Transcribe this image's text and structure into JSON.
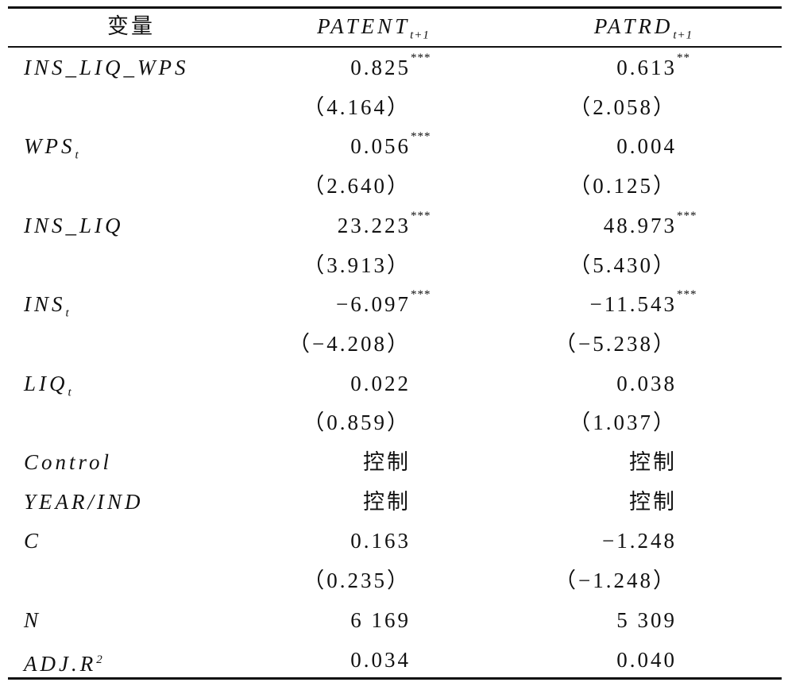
{
  "table": {
    "header": [
      {
        "text": "变量"
      },
      {
        "text": "PATENT",
        "sub": "t+1"
      },
      {
        "text": "PATRD",
        "sub": "t+1"
      }
    ],
    "rows": [
      {
        "label": {
          "text": "INS_LIQ_WPS"
        },
        "cells": [
          {
            "text": "0.825",
            "sup": "***"
          },
          {
            "text": "0.613",
            "sup": "**"
          }
        ]
      },
      {
        "label": null,
        "cells": [
          {
            "text": "（4.164）"
          },
          {
            "text": "（2.058）"
          }
        ]
      },
      {
        "label": {
          "text": "WPS",
          "sub": "t"
        },
        "cells": [
          {
            "text": "0.056",
            "sup": "***"
          },
          {
            "text": "0.004"
          }
        ]
      },
      {
        "label": null,
        "cells": [
          {
            "text": "（2.640）"
          },
          {
            "text": "（0.125）"
          }
        ]
      },
      {
        "label": {
          "text": "INS_LIQ"
        },
        "cells": [
          {
            "text": "23.223",
            "sup": "***"
          },
          {
            "text": "48.973",
            "sup": "***"
          }
        ]
      },
      {
        "label": null,
        "cells": [
          {
            "text": "（3.913）"
          },
          {
            "text": "（5.430）"
          }
        ]
      },
      {
        "label": {
          "text": "INS",
          "sub": "t"
        },
        "cells": [
          {
            "text": "−6.097",
            "sup": "***"
          },
          {
            "text": "−11.543",
            "sup": "***"
          }
        ]
      },
      {
        "label": null,
        "cells": [
          {
            "text": "（−4.208）"
          },
          {
            "text": "（−5.238）"
          }
        ]
      },
      {
        "label": {
          "text": "LIQ",
          "sub": "t"
        },
        "cells": [
          {
            "text": "0.022"
          },
          {
            "text": "0.038"
          }
        ]
      },
      {
        "label": null,
        "cells": [
          {
            "text": "（0.859）"
          },
          {
            "text": "（1.037）"
          }
        ]
      },
      {
        "label": {
          "text": "Control"
        },
        "cells": [
          {
            "text": "控制"
          },
          {
            "text": "控制"
          }
        ]
      },
      {
        "label": {
          "text": "YEAR/IND"
        },
        "cells": [
          {
            "text": "控制"
          },
          {
            "text": "控制"
          }
        ]
      },
      {
        "label": {
          "text": "C"
        },
        "cells": [
          {
            "text": "0.163"
          },
          {
            "text": "−1.248"
          }
        ]
      },
      {
        "label": null,
        "cells": [
          {
            "text": "（0.235）"
          },
          {
            "text": "（−1.248）"
          }
        ]
      },
      {
        "label": {
          "text": "N"
        },
        "cells": [
          {
            "text": "6 169"
          },
          {
            "text": "5 309"
          }
        ]
      },
      {
        "label": {
          "text": "ADJ.R",
          "sup": "2"
        },
        "cells": [
          {
            "text": "0.034"
          },
          {
            "text": "0.040"
          }
        ]
      }
    ]
  }
}
